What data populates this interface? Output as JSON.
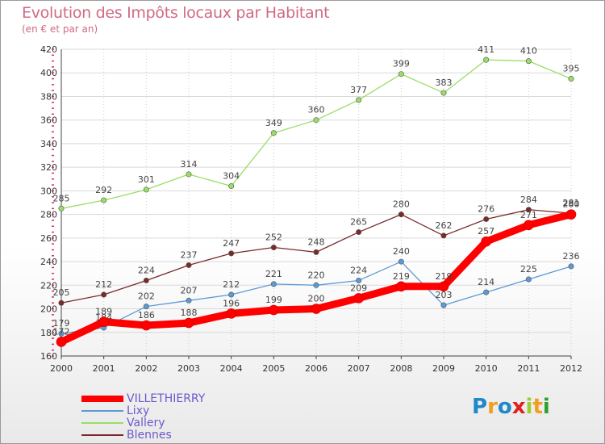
{
  "title": "Evolution des Impôts locaux par Habitant",
  "subtitle": "(en € et par an)",
  "logo": {
    "letters": [
      "P",
      "r",
      "o",
      "x",
      "i",
      "t",
      "i"
    ],
    "colors": [
      "#1e88c8",
      "#f0a020",
      "#1e88c8",
      "#e02020",
      "#9acd32",
      "#f0a020",
      "#2ca02c"
    ]
  },
  "chart_data": {
    "type": "line",
    "x": [
      2000,
      2001,
      2002,
      2003,
      2004,
      2005,
      2006,
      2007,
      2008,
      2009,
      2010,
      2011,
      2012
    ],
    "ylim": [
      160,
      420
    ],
    "yticks": [
      160,
      180,
      200,
      220,
      240,
      260,
      280,
      300,
      320,
      340,
      360,
      380,
      400,
      420
    ],
    "grid": true,
    "legend_position": "bottom-left",
    "series": [
      {
        "name": "VILLETHIERRY",
        "color": "#ff0000",
        "width": 9,
        "values": [
          172,
          189,
          186,
          188,
          196,
          199,
          200,
          209,
          219,
          219,
          257,
          271,
          280
        ]
      },
      {
        "name": "Lixy",
        "color": "#5b9bd5",
        "width": 1.3,
        "values": [
          179,
          184,
          202,
          207,
          212,
          221,
          220,
          224,
          240,
          203,
          214,
          225,
          236
        ]
      },
      {
        "name": "Vallery",
        "color": "#99dd66",
        "width": 1.3,
        "values": [
          285,
          292,
          301,
          314,
          304,
          349,
          360,
          377,
          399,
          383,
          411,
          410,
          395
        ]
      },
      {
        "name": "Blennes",
        "color": "#7a2a2a",
        "width": 1.3,
        "values": [
          205,
          212,
          224,
          237,
          247,
          252,
          248,
          265,
          280,
          262,
          276,
          284,
          281
        ]
      }
    ]
  }
}
